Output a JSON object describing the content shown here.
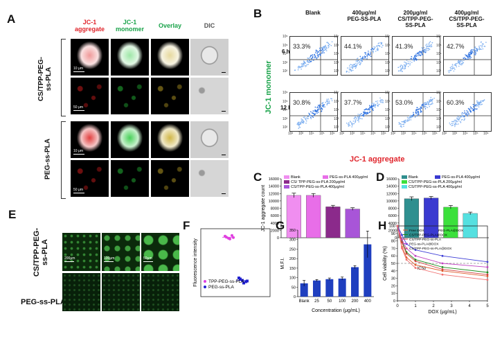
{
  "panels": {
    "A": "A",
    "B": "B",
    "C": "C",
    "D": "D",
    "E": "E",
    "F": "F",
    "G": "G",
    "H": "H"
  },
  "panelA": {
    "col_headers": [
      [
        "JC-1",
        "aggregate"
      ],
      [
        "JC-1",
        "monomer"
      ],
      [
        "Overlay"
      ],
      [
        "DIC"
      ]
    ],
    "header_colors": [
      "#e0242b",
      "#1aa34a",
      "#1aa34a",
      "#555555"
    ],
    "row_groups": [
      [
        "CS/TPP-PEG-",
        "ss-PLA"
      ],
      [
        "PEG-ss-PLA"
      ]
    ],
    "scalebars": [
      "10 μm",
      "50 μm",
      "10 μm",
      "50 μm"
    ]
  },
  "panelB": {
    "col_headers": [
      [
        "Blank"
      ],
      [
        "400μg/ml",
        "PEG-SS-PLA"
      ],
      [
        "200μg/ml",
        "CS/TPP-PEG-",
        "SS-PLA"
      ],
      [
        "400μg/ml",
        "CS/TPP-PEG-",
        "SS-PLA"
      ]
    ],
    "row_labels": [
      "6 h",
      "12 h"
    ],
    "percents": [
      [
        "33.3%",
        "44.1%",
        "41.3%",
        "42.7%"
      ],
      [
        "30.8%",
        "37.7%",
        "53.0%",
        "60.3%"
      ]
    ],
    "y_ticks": [
      "10⁶",
      "10⁵",
      "10⁴",
      "10³",
      "10²"
    ],
    "x_ticks": [
      "10²",
      "10³",
      "10⁴",
      "10⁵",
      "10⁶"
    ],
    "ylabel": "JC-1 monomer",
    "xlabel": "JC-1 aggregate"
  },
  "chart_data": [
    {
      "id": "C",
      "type": "bar",
      "ylabel": "JC-1 aggregate count",
      "ylim": [
        0,
        16000
      ],
      "yticks": [
        "0",
        "2000",
        "4000",
        "6000",
        "8000",
        "10000",
        "12000",
        "14000",
        "16000"
      ],
      "legend": [
        "Blank",
        "PEG-ss-PLA 400μg/ml",
        "CS/ TPP-PEG-ss-PLA 200μg/ml",
        "CS/TPP-PEG-ss-PLA 400μg/ml"
      ],
      "values": [
        11500,
        11500,
        8400,
        7800
      ],
      "errors": [
        600,
        500,
        400,
        350
      ],
      "colors": [
        "#f08ef0",
        "#e86ee8",
        "#8b2a8b",
        "#a855d8"
      ]
    },
    {
      "id": "D",
      "type": "bar",
      "ylim": [
        0,
        16000
      ],
      "yticks": [
        "0",
        "2000",
        "4000",
        "6000",
        "8000",
        "10000",
        "12000",
        "14000",
        "16000"
      ],
      "legend": [
        "Blank",
        "PEG-ss-PLA 400μg/ml",
        "CS/TPP-PEG-ss-PLA 200μg/ml",
        "CS/TPP-PEG-ss-PLA 400μg/ml"
      ],
      "values": [
        10600,
        10800,
        8300,
        6600
      ],
      "errors": [
        500,
        400,
        450,
        350
      ],
      "colors": [
        "#2f8f8f",
        "#3a3ad0",
        "#3ce03c",
        "#55e0e0"
      ]
    },
    {
      "id": "F",
      "type": "scatter",
      "ylabel": "Fluorescence intensity",
      "series": [
        {
          "name": "TPP-PEG-ss-PLA",
          "color": "#e040e0",
          "values": [
            218,
            212,
            220,
            215,
            210,
            214
          ]
        },
        {
          "name": "PEG-ss-PLA",
          "color": "#2020d0",
          "values": [
            95,
            88,
            84,
            92,
            80,
            86
          ]
        }
      ]
    },
    {
      "id": "G",
      "type": "bar",
      "ylabel": "M.F.I.",
      "xlabel": "Concentration (μg/mL)",
      "categories": [
        "Blank",
        "25",
        "50",
        "100",
        "200",
        "400"
      ],
      "values": [
        70,
        85,
        92,
        95,
        155,
        275
      ],
      "errors": [
        15,
        5,
        6,
        8,
        8,
        70
      ],
      "ylim": [
        0,
        350
      ],
      "yticks": [
        "0",
        "50",
        "100",
        "150",
        "200",
        "250",
        "300",
        "350"
      ],
      "color": "#1f3fbf"
    },
    {
      "id": "H",
      "type": "line",
      "ylabel": "Cell viability (%)",
      "xlabel": "DOX (μg/mL)",
      "x": [
        0,
        0.25,
        0.5,
        1,
        2.5,
        5
      ],
      "ylim": [
        0,
        100
      ],
      "xlim": [
        0,
        5
      ],
      "yticks": [
        "0",
        "10",
        "20",
        "30",
        "40",
        "50",
        "60",
        "70",
        "80",
        "90",
        "100"
      ],
      "xticks": [
        "0",
        "1",
        "2",
        "3",
        "4",
        "5"
      ],
      "annotation": "IC50",
      "series": [
        {
          "name": "Free DOX",
          "color": "#e05a2a",
          "values": [
            100,
            72,
            58,
            48,
            40,
            33
          ]
        },
        {
          "name": "PEG-PLA@DOX",
          "color": "#3b3bd6",
          "values": [
            100,
            88,
            76,
            68,
            60,
            52
          ]
        },
        {
          "name": "CS/TPP-PEG-PLA@DOX",
          "color": "#1a8a1a",
          "values": [
            100,
            80,
            65,
            55,
            45,
            38
          ]
        },
        {
          "name": "CS/TPP-PEG-ss-PLA",
          "color": "#d04040",
          "values": [
            100,
            78,
            63,
            53,
            42,
            35
          ]
        },
        {
          "name": "PEG-ss-PLA@DOX",
          "color": "#c040c0",
          "values": [
            100,
            82,
            70,
            60,
            50,
            45
          ]
        },
        {
          "name": "CS/TPP-PEG-ss-PLA@DOX",
          "color": "#f07070",
          "values": [
            100,
            70,
            55,
            44,
            35,
            28
          ]
        }
      ]
    }
  ],
  "panelE": {
    "row_labels": [
      [
        "CS/TPP-PEG-",
        "ss-PLA"
      ],
      [
        "PEG-ss-PLA"
      ]
    ],
    "scalebars": [
      "200μm",
      "100μm",
      "50μm"
    ]
  }
}
